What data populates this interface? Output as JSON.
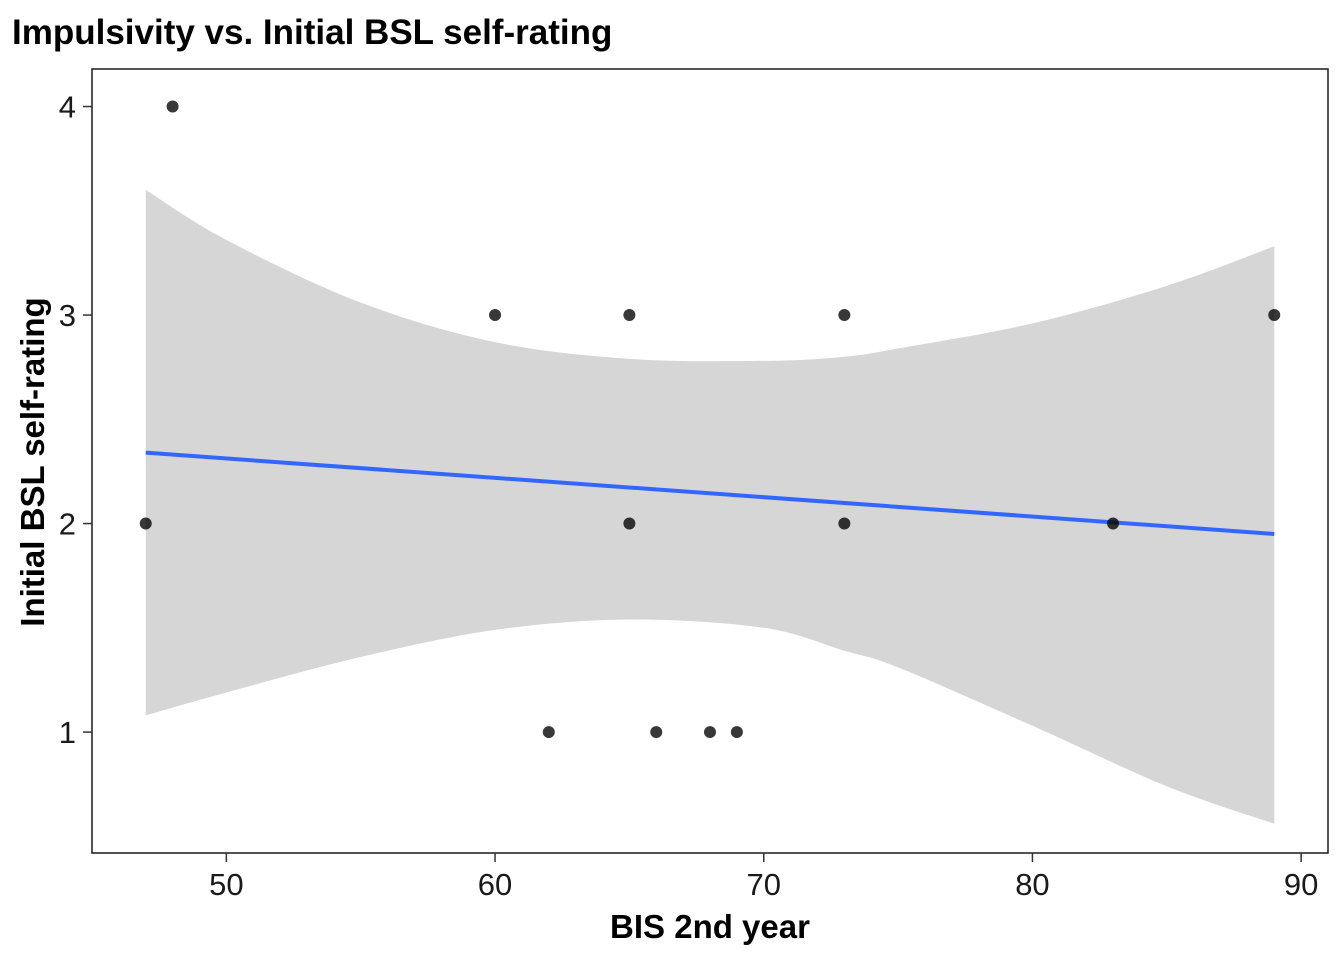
{
  "chart_data": {
    "type": "scatter",
    "title": "Impulsivity vs. Initial BSL self-rating",
    "xlabel": "BIS 2nd year",
    "ylabel": "Initial BSL self-rating",
    "xlim": [
      45,
      91
    ],
    "ylim": [
      0.42,
      4.18
    ],
    "x_ticks": [
      50,
      60,
      70,
      80,
      90
    ],
    "y_ticks": [
      1,
      2,
      3,
      4
    ],
    "grid": false,
    "points": [
      {
        "x": 47,
        "y": 2
      },
      {
        "x": 48,
        "y": 4
      },
      {
        "x": 60,
        "y": 3
      },
      {
        "x": 62,
        "y": 1
      },
      {
        "x": 65,
        "y": 3
      },
      {
        "x": 65,
        "y": 2
      },
      {
        "x": 66,
        "y": 1
      },
      {
        "x": 68,
        "y": 1
      },
      {
        "x": 69,
        "y": 1
      },
      {
        "x": 73,
        "y": 3
      },
      {
        "x": 73,
        "y": 2
      },
      {
        "x": 83,
        "y": 2
      },
      {
        "x": 89,
        "y": 3
      }
    ],
    "trend_line": {
      "x": [
        47,
        89
      ],
      "y": [
        2.34,
        1.95
      ],
      "color": "#3366FF"
    },
    "confidence_band": {
      "color": "#D6D6D6",
      "x": [
        47,
        50,
        55,
        60,
        65,
        70,
        73,
        75,
        80,
        85,
        89
      ],
      "upper": [
        3.6,
        3.36,
        3.06,
        2.87,
        2.79,
        2.78,
        2.8,
        2.84,
        2.96,
        3.14,
        3.33
      ],
      "lower": [
        1.08,
        1.19,
        1.36,
        1.49,
        1.54,
        1.5,
        1.39,
        1.31,
        1.03,
        0.74,
        0.56
      ]
    },
    "point_color": "#000000"
  }
}
